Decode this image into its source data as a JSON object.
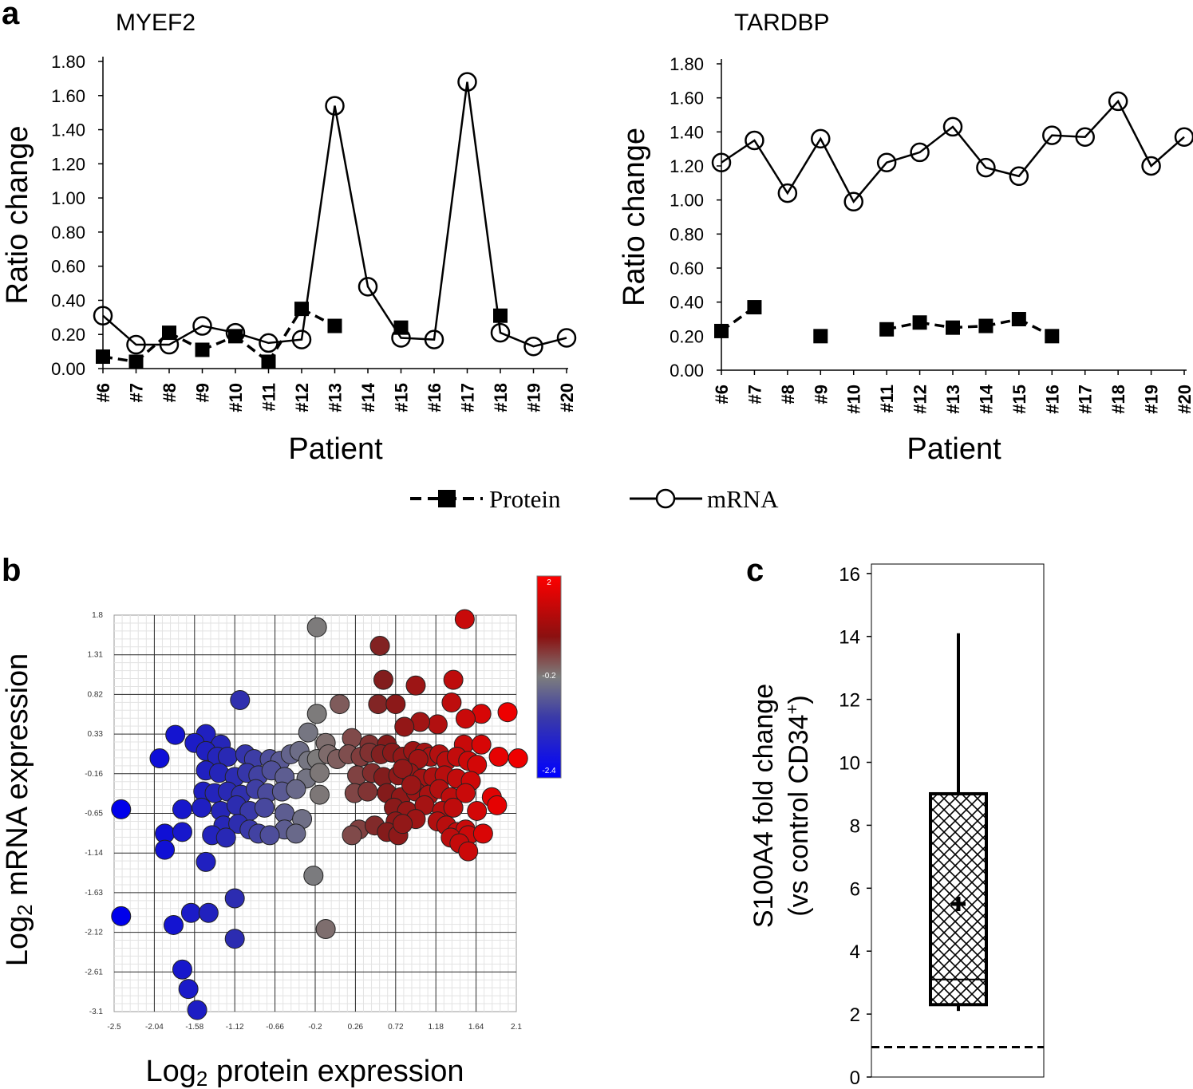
{
  "panels": {
    "a_label": "a",
    "b_label": "b",
    "c_label": "c"
  },
  "legend": {
    "protein_label": "Protein",
    "mrna_label": "mRNA"
  },
  "chart_data": [
    {
      "id": "myef2",
      "type": "line",
      "title": "MYEF2",
      "xlabel": "Patient",
      "ylabel": "Ratio change",
      "ylim": [
        0,
        1.8
      ],
      "yticks": [
        "0.00",
        "0.20",
        "0.40",
        "0.60",
        "0.80",
        "1.00",
        "1.20",
        "1.40",
        "1.60",
        "1.80"
      ],
      "categories": [
        "#6",
        "#7",
        "#8",
        "#9",
        "#10",
        "#11",
        "#12",
        "#13",
        "#14",
        "#15",
        "#16",
        "#17",
        "#18",
        "#19",
        "#20"
      ],
      "series": [
        {
          "name": "Protein",
          "style": "dashed-square",
          "values": [
            0.07,
            0.04,
            0.21,
            0.11,
            0.19,
            0.04,
            0.35,
            0.25,
            null,
            0.24,
            null,
            null,
            0.31,
            null,
            null
          ]
        },
        {
          "name": "mRNA",
          "style": "solid-circle",
          "values": [
            0.31,
            0.14,
            0.14,
            0.25,
            0.21,
            0.15,
            0.17,
            1.54,
            0.48,
            0.18,
            0.17,
            1.68,
            0.21,
            0.13,
            0.18
          ]
        }
      ]
    },
    {
      "id": "tardbp",
      "type": "line",
      "title": "TARDBP",
      "xlabel": "Patient",
      "ylabel": "Ratio change",
      "ylim": [
        0,
        1.8
      ],
      "yticks": [
        "0.00",
        "0.20",
        "0.40",
        "0.60",
        "0.80",
        "1.00",
        "1.20",
        "1.40",
        "1.60",
        "1.80"
      ],
      "categories": [
        "#6",
        "#7",
        "#8",
        "#9",
        "#10",
        "#11",
        "#12",
        "#13",
        "#14",
        "#15",
        "#16",
        "#17",
        "#18",
        "#19",
        "#20"
      ],
      "series": [
        {
          "name": "Protein",
          "style": "dashed-square",
          "values": [
            0.23,
            0.37,
            null,
            0.2,
            null,
            0.24,
            0.28,
            0.25,
            0.26,
            0.3,
            0.2,
            null,
            null,
            null,
            null
          ]
        },
        {
          "name": "mRNA",
          "style": "solid-circle",
          "values": [
            1.22,
            1.35,
            1.04,
            1.36,
            0.99,
            1.22,
            1.28,
            1.43,
            1.19,
            1.14,
            1.38,
            1.37,
            1.58,
            1.2,
            1.37
          ]
        }
      ]
    },
    {
      "id": "scatter",
      "type": "scatter",
      "xlabel": "Log2 protein expression",
      "ylabel": "Log2 mRNA expression",
      "xlabel_parts": [
        "Log",
        "2",
        " protein expression"
      ],
      "ylabel_parts": [
        "Log",
        "2",
        " mRNA expression"
      ],
      "xlim": [
        -2.5,
        2.1
      ],
      "ylim": [
        -3.1,
        1.8
      ],
      "xticks": [
        "-2.5",
        "-2.04",
        "-1.58",
        "-1.12",
        "-0.66",
        "-0.2",
        "0.26",
        "0.72",
        "1.18",
        "1.64",
        "2.1"
      ],
      "yticks": [
        "1.8",
        "1.31",
        "0.82",
        "0.33",
        "-0.16",
        "-0.65",
        "-1.14",
        "-1.63",
        "-2.12",
        "-2.61",
        "-3.1"
      ],
      "colorbar": {
        "max": "2",
        "mid": "-0.2",
        "min": "-2.4"
      },
      "points": [
        [
          -0.18,
          1.65
        ],
        [
          1.51,
          1.75
        ],
        [
          0.54,
          1.42
        ],
        [
          0.58,
          1.0
        ],
        [
          0.95,
          0.93
        ],
        [
          1.38,
          1.0
        ],
        [
          -1.06,
          0.75
        ],
        [
          -0.18,
          0.58
        ],
        [
          0.08,
          0.7
        ],
        [
          0.52,
          0.7
        ],
        [
          0.72,
          0.7
        ],
        [
          1.36,
          0.72
        ],
        [
          2.0,
          0.6
        ],
        [
          1.7,
          0.58
        ],
        [
          1.52,
          0.52
        ],
        [
          1.2,
          0.45
        ],
        [
          1.0,
          0.48
        ],
        [
          0.82,
          0.42
        ],
        [
          -1.8,
          0.32
        ],
        [
          -1.45,
          0.33
        ],
        [
          -1.58,
          0.22
        ],
        [
          -1.28,
          0.2
        ],
        [
          -0.28,
          0.35
        ],
        [
          -0.08,
          0.22
        ],
        [
          0.22,
          0.28
        ],
        [
          0.42,
          0.2
        ],
        [
          0.62,
          0.2
        ],
        [
          1.5,
          0.2
        ],
        [
          1.7,
          0.2
        ],
        [
          1.9,
          0.05
        ],
        [
          2.12,
          0.03
        ],
        [
          -1.98,
          0.03
        ],
        [
          -1.45,
          0.12
        ],
        [
          -1.32,
          0.05
        ],
        [
          -1.2,
          0.05
        ],
        [
          -1.0,
          0.08
        ],
        [
          -0.9,
          0.02
        ],
        [
          -0.72,
          0.02
        ],
        [
          -0.6,
          0.0
        ],
        [
          -0.48,
          0.08
        ],
        [
          -0.38,
          0.12
        ],
        [
          -0.28,
          0.0
        ],
        [
          -0.18,
          0.02
        ],
        [
          -0.05,
          0.08
        ],
        [
          0.05,
          0.02
        ],
        [
          0.18,
          0.08
        ],
        [
          0.32,
          0.05
        ],
        [
          0.42,
          0.1
        ],
        [
          0.55,
          0.08
        ],
        [
          0.68,
          0.1
        ],
        [
          0.8,
          0.05
        ],
        [
          0.92,
          0.12
        ],
        [
          1.05,
          0.1
        ],
        [
          1.12,
          0.05
        ],
        [
          1.22,
          0.08
        ],
        [
          1.3,
          0.0
        ],
        [
          1.42,
          0.05
        ],
        [
          1.55,
          0.0
        ],
        [
          1.65,
          -0.05
        ],
        [
          0.98,
          0.02
        ],
        [
          -1.45,
          -0.12
        ],
        [
          -1.3,
          -0.15
        ],
        [
          -1.12,
          -0.2
        ],
        [
          -0.98,
          -0.15
        ],
        [
          -0.85,
          -0.18
        ],
        [
          -0.7,
          -0.12
        ],
        [
          -0.55,
          -0.2
        ],
        [
          -0.3,
          -0.22
        ],
        [
          -0.15,
          -0.15
        ],
        [
          0.28,
          -0.18
        ],
        [
          0.45,
          -0.15
        ],
        [
          0.58,
          -0.2
        ],
        [
          0.75,
          -0.18
        ],
        [
          0.88,
          -0.15
        ],
        [
          1.02,
          -0.22
        ],
        [
          1.15,
          -0.2
        ],
        [
          1.28,
          -0.18
        ],
        [
          1.42,
          -0.22
        ],
        [
          1.58,
          -0.25
        ],
        [
          0.8,
          -0.1
        ],
        [
          -1.48,
          -0.38
        ],
        [
          -1.35,
          -0.4
        ],
        [
          -1.2,
          -0.38
        ],
        [
          -1.05,
          -0.42
        ],
        [
          -0.88,
          -0.35
        ],
        [
          -0.75,
          -0.4
        ],
        [
          -0.58,
          -0.38
        ],
        [
          -0.42,
          -0.35
        ],
        [
          -0.15,
          -0.42
        ],
        [
          0.25,
          -0.4
        ],
        [
          0.4,
          -0.38
        ],
        [
          0.62,
          -0.4
        ],
        [
          0.78,
          -0.45
        ],
        [
          0.95,
          -0.38
        ],
        [
          1.1,
          -0.42
        ],
        [
          1.22,
          -0.35
        ],
        [
          1.35,
          -0.45
        ],
        [
          1.52,
          -0.4
        ],
        [
          1.82,
          -0.45
        ],
        [
          0.9,
          -0.3
        ],
        [
          -2.42,
          -0.6
        ],
        [
          -1.72,
          -0.6
        ],
        [
          -1.5,
          -0.58
        ],
        [
          -1.28,
          -0.62
        ],
        [
          -1.1,
          -0.55
        ],
        [
          -0.95,
          -0.62
        ],
        [
          -0.78,
          -0.58
        ],
        [
          -0.55,
          -0.65
        ],
        [
          -0.35,
          -0.72
        ],
        [
          0.7,
          -0.58
        ],
        [
          0.85,
          -0.62
        ],
        [
          1.05,
          -0.55
        ],
        [
          1.25,
          -0.62
        ],
        [
          1.38,
          -0.58
        ],
        [
          1.65,
          -0.62
        ],
        [
          1.88,
          -0.55
        ],
        [
          0.72,
          -0.75
        ],
        [
          0.95,
          -0.72
        ],
        [
          1.2,
          -0.75
        ],
        [
          -1.25,
          -0.8
        ],
        [
          -1.08,
          -0.78
        ],
        [
          -0.95,
          -0.85
        ],
        [
          -0.55,
          -0.85
        ],
        [
          -0.42,
          -0.9
        ],
        [
          0.3,
          -0.85
        ],
        [
          0.48,
          -0.8
        ],
        [
          0.62,
          -0.88
        ],
        [
          0.75,
          -0.92
        ],
        [
          1.3,
          -0.8
        ],
        [
          1.42,
          -0.88
        ],
        [
          1.52,
          -0.85
        ],
        [
          0.8,
          -0.78
        ],
        [
          -1.92,
          -0.9
        ],
        [
          -1.72,
          -0.88
        ],
        [
          -1.38,
          -0.92
        ],
        [
          -1.22,
          -0.95
        ],
        [
          -0.85,
          -0.9
        ],
        [
          -0.72,
          -0.92
        ],
        [
          0.22,
          -0.92
        ],
        [
          1.35,
          -0.95
        ],
        [
          1.55,
          -0.92
        ],
        [
          1.72,
          -0.9
        ],
        [
          1.45,
          -1.02
        ],
        [
          1.55,
          -1.12
        ],
        [
          -1.92,
          -1.1
        ],
        [
          -1.45,
          -1.25
        ],
        [
          -0.22,
          -1.42
        ],
        [
          -1.12,
          -1.7
        ],
        [
          -2.42,
          -1.92
        ],
        [
          -1.62,
          -1.88
        ],
        [
          -1.42,
          -1.88
        ],
        [
          -1.82,
          -2.03
        ],
        [
          -1.12,
          -2.2
        ],
        [
          -0.08,
          -2.08
        ],
        [
          -1.72,
          -2.58
        ],
        [
          -1.65,
          -2.82
        ],
        [
          -1.55,
          -3.08
        ]
      ]
    },
    {
      "id": "boxplot",
      "type": "box",
      "ylabel_line1": "S100A4 fold change",
      "ylabel_line2_pre": "(vs control CD34",
      "ylabel_sup": "+",
      "ylabel_line2_post": ")",
      "ylim": [
        0,
        16.3
      ],
      "yticks": [
        "0",
        "2",
        "4",
        "6",
        "8",
        "10",
        "12",
        "14",
        "16"
      ],
      "box": {
        "min": 2.1,
        "q1": 2.3,
        "median": 3.1,
        "q3": 9.0,
        "max": 14.1,
        "mean": 5.5
      },
      "reference_line": 0.95
    }
  ]
}
